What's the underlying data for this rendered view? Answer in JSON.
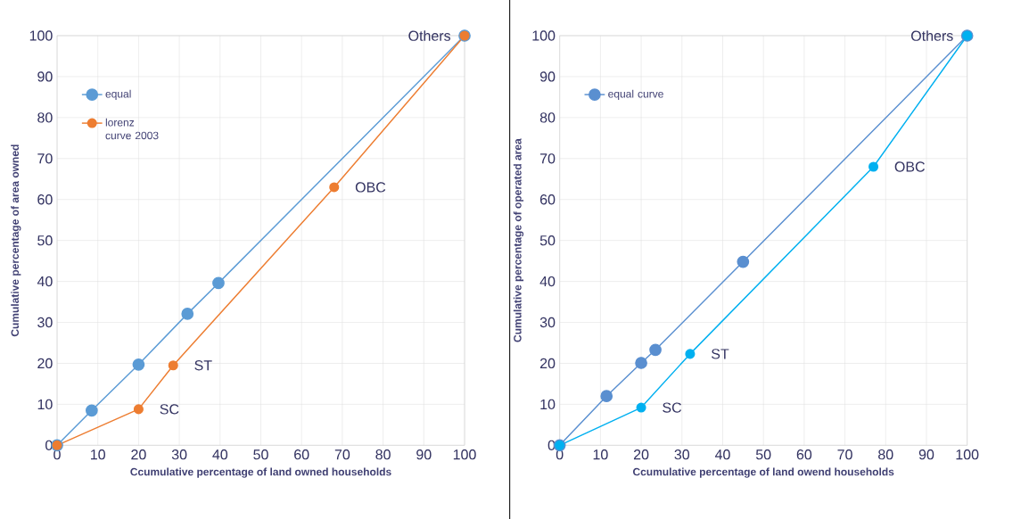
{
  "chart_data": [
    {
      "type": "line",
      "xlabel": "Ccumulative percentage of land owned  households",
      "ylabel": "Cumulative percentage of  area owned",
      "xlim": [
        0,
        100
      ],
      "ylim": [
        0,
        100
      ],
      "xticks": [
        0,
        10,
        20,
        30,
        40,
        50,
        60,
        70,
        80,
        90,
        100
      ],
      "yticks": [
        0,
        10,
        20,
        30,
        40,
        50,
        60,
        70,
        80,
        90,
        100
      ],
      "grid": true,
      "legend": "top left",
      "marker": "circle",
      "series": [
        {
          "name": "equal",
          "color": "#5b9bd5",
          "x": [
            0,
            8.5,
            20,
            32,
            39.6,
            100
          ],
          "values": [
            0,
            8.5,
            19.7,
            32.1,
            39.6,
            100
          ]
        },
        {
          "name": "lorenz curve 2003",
          "color": "#ed7d31",
          "x": [
            0,
            20,
            28.5,
            68,
            100
          ],
          "values": [
            0,
            8.8,
            19.5,
            63,
            100
          ]
        }
      ],
      "annotations": [
        {
          "text": "SC",
          "x": 20,
          "y": 8.8
        },
        {
          "text": "ST",
          "x": 28.5,
          "y": 19.5
        },
        {
          "text": "OBC",
          "x": 68,
          "y": 63
        },
        {
          "text": "Others",
          "x": 100,
          "y": 100
        }
      ]
    },
    {
      "type": "line",
      "xlabel": "Ccumulative percentage of land owend households",
      "ylabel": "Cumulative percentage of operated area",
      "xlim": [
        0,
        100
      ],
      "ylim": [
        0,
        100
      ],
      "xticks": [
        0,
        10,
        20,
        30,
        40,
        50,
        60,
        70,
        80,
        90,
        100
      ],
      "yticks": [
        0,
        10,
        20,
        30,
        40,
        50,
        60,
        70,
        80,
        90,
        100
      ],
      "grid": true,
      "legend": "top left",
      "marker": "circle",
      "series": [
        {
          "name": "equal curve",
          "color": "#5a8fd0",
          "x": [
            0,
            11.5,
            20,
            23.5,
            45,
            100
          ],
          "values": [
            0,
            12,
            20.1,
            23.3,
            44.8,
            100
          ]
        },
        {
          "color": "#00b0f0",
          "x": [
            0,
            20,
            32,
            77,
            100
          ],
          "values": [
            0,
            9.2,
            22.3,
            68,
            100
          ]
        }
      ],
      "annotations": [
        {
          "text": "SC",
          "x": 20,
          "y": 9.2
        },
        {
          "text": "ST",
          "x": 32,
          "y": 22.3
        },
        {
          "text": "OBC",
          "x": 77,
          "y": 68
        },
        {
          "text": "Others",
          "x": 100,
          "y": 100
        }
      ]
    }
  ]
}
